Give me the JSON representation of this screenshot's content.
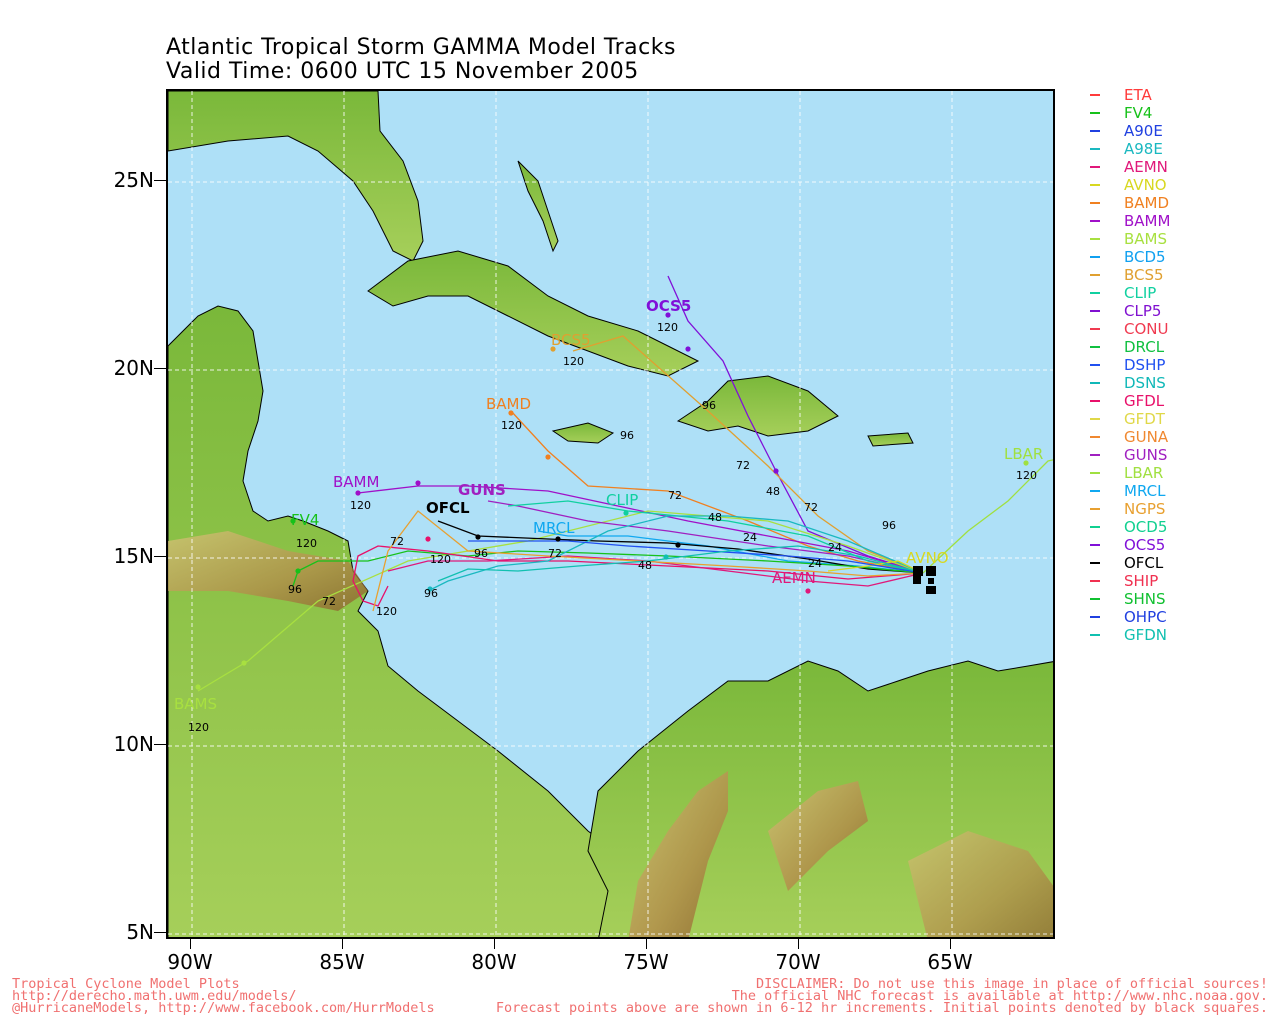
{
  "title": {
    "line1": "Atlantic Tropical Storm GAMMA Model Tracks",
    "line2": "Valid Time: 0600 UTC 15 November 2005"
  },
  "axes": {
    "lat_labels": [
      "25N",
      "20N",
      "15N",
      "10N",
      "5N"
    ],
    "lon_labels": [
      "90W",
      "85W",
      "80W",
      "75W",
      "70W",
      "65W"
    ]
  },
  "legend": [
    {
      "name": "ETA",
      "color": "#ff3b3b"
    },
    {
      "name": "FV4",
      "color": "#17c11a"
    },
    {
      "name": "A90E",
      "color": "#2040e0"
    },
    {
      "name": "A98E",
      "color": "#1ab8c0"
    },
    {
      "name": "AEMN",
      "color": "#e0187a"
    },
    {
      "name": "AVNO",
      "color": "#d8d820"
    },
    {
      "name": "BAMD",
      "color": "#f08020"
    },
    {
      "name": "BAMM",
      "color": "#a010c8"
    },
    {
      "name": "BAMS",
      "color": "#a8e040"
    },
    {
      "name": "BCD5",
      "color": "#10a0f0"
    },
    {
      "name": "BCS5",
      "color": "#e0a030"
    },
    {
      "name": "CLIP",
      "color": "#10d0a0"
    },
    {
      "name": "CLP5",
      "color": "#8010d0"
    },
    {
      "name": "CONU",
      "color": "#f03a50"
    },
    {
      "name": "DRCL",
      "color": "#10c040"
    },
    {
      "name": "DSHP",
      "color": "#2050f0"
    },
    {
      "name": "DSNS",
      "color": "#10b8b8"
    },
    {
      "name": "GFDL",
      "color": "#e8106a"
    },
    {
      "name": "GFDT",
      "color": "#e0d848"
    },
    {
      "name": "GUNA",
      "color": "#f08830"
    },
    {
      "name": "GUNS",
      "color": "#a020c0"
    },
    {
      "name": "LBAR",
      "color": "#a0e040"
    },
    {
      "name": "MRCL",
      "color": "#10a8f0"
    },
    {
      "name": "NGPS",
      "color": "#e8a030"
    },
    {
      "name": "OCD5",
      "color": "#10d090"
    },
    {
      "name": "OCS5",
      "color": "#8010d8"
    },
    {
      "name": "OFCL",
      "color": "#000000"
    },
    {
      "name": "SHIP",
      "color": "#f03050"
    },
    {
      "name": "SHNS",
      "color": "#10c030"
    },
    {
      "name": "OHPC",
      "color": "#2040e0"
    },
    {
      "name": "GFDN",
      "color": "#10c0b0"
    }
  ],
  "map_labels": {
    "ocs5": "OCS5",
    "bcs5": "BCS5",
    "bamd": "BAMD",
    "bamm": "BAMM",
    "guns": "GUNS",
    "clip": "CLIP",
    "mrcl": "MRCL",
    "ofcl": "OFCL",
    "fv4": "FV4",
    "bams": "BAMS",
    "lbar": "LBAR",
    "avno": "AVNO",
    "aemn": "AEMN",
    "h120": "120",
    "h96": "96",
    "h72": "72",
    "h48": "48",
    "h24": "24"
  },
  "footer": {
    "left1": "Tropical Cyclone Model Plots",
    "left2": "http://derecho.math.uwm.edu/models/",
    "left3": "@HurricaneModels, http://www.facebook.com/HurrModels",
    "right1": "DISCLAIMER: Do not use this image in place of official sources!",
    "right2": "The official NHC forecast is available at http://www.nhc.noaa.gov.",
    "right3": "Forecast points above are shown in 6-12 hr increments. Initial points denoted by black squares."
  }
}
